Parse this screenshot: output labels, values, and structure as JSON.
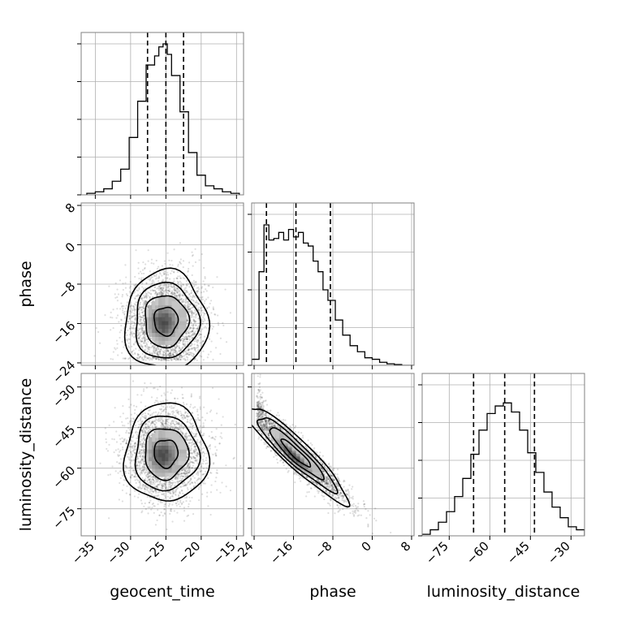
{
  "chart_data": {
    "type": "corner",
    "parameters": [
      "geocent_time",
      "phase",
      "luminosity_distance"
    ],
    "axis_labels": {
      "bottom": [
        "geocent_time",
        "phase",
        "luminosity_distance"
      ],
      "left": [
        "phase",
        "luminosity_distance"
      ]
    },
    "ranges": {
      "geocent_time": [
        -37,
        -14
      ],
      "phase": [
        -24.5,
        8.5
      ],
      "luminosity_distance": [
        -85,
        -25
      ]
    },
    "ticks": {
      "geocent_time": [
        -35,
        -30,
        -25,
        -20,
        -15
      ],
      "phase": [
        -24,
        -16,
        -8,
        0,
        8
      ],
      "luminosity_distance": [
        -75,
        -60,
        -45,
        -30
      ]
    },
    "quantiles": {
      "geocent_time": [
        -27.6,
        -25.0,
        -22.5
      ],
      "phase": [
        -21.5,
        -15.5,
        -8.5
      ],
      "luminosity_distance": [
        -66.0,
        -54.5,
        -43.5
      ]
    },
    "histograms": {
      "geocent_time": {
        "edges": [
          -36.2,
          -35.0,
          -33.8,
          -32.6,
          -31.4,
          -30.2,
          -29.0,
          -27.8,
          -26.6,
          -26.0,
          -25.4,
          -24.8,
          -24.2,
          -23.0,
          -21.8,
          -20.6,
          -19.4,
          -18.2,
          -17.0,
          -15.8,
          -14.6
        ],
        "counts": [
          0.01,
          0.02,
          0.04,
          0.09,
          0.17,
          0.38,
          0.62,
          0.86,
          0.92,
          0.98,
          1.0,
          0.93,
          0.79,
          0.55,
          0.28,
          0.13,
          0.06,
          0.04,
          0.02,
          0.01
        ]
      },
      "phase": {
        "edges": [
          -24.5,
          -23.0,
          -22.0,
          -21.0,
          -20.0,
          -19.0,
          -18.0,
          -17.0,
          -16.0,
          -15.0,
          -14.0,
          -13.0,
          -12.0,
          -11.0,
          -10.0,
          -9.0,
          -7.5,
          -6.0,
          -4.5,
          -3.0,
          -1.5,
          0.0,
          1.5,
          3.0,
          4.5,
          6.0,
          8.5
        ],
        "counts": [
          0.04,
          0.62,
          0.93,
          0.83,
          0.84,
          0.88,
          0.83,
          0.9,
          0.85,
          0.88,
          0.81,
          0.79,
          0.69,
          0.62,
          0.5,
          0.43,
          0.3,
          0.2,
          0.13,
          0.09,
          0.05,
          0.04,
          0.02,
          0.01,
          0.005,
          0.0
        ]
      },
      "luminosity_distance": {
        "edges": [
          -85,
          -82,
          -79,
          -76,
          -73,
          -70,
          -67,
          -64,
          -61,
          -58,
          -55,
          -52,
          -49,
          -46,
          -43,
          -40,
          -37,
          -34,
          -31,
          -28,
          -25
        ],
        "counts": [
          0.01,
          0.04,
          0.09,
          0.16,
          0.26,
          0.38,
          0.54,
          0.7,
          0.81,
          0.86,
          0.88,
          0.82,
          0.7,
          0.55,
          0.42,
          0.29,
          0.19,
          0.12,
          0.06,
          0.04
        ]
      }
    },
    "scatter_pairs": [
      {
        "x": "geocent_time",
        "y": "phase"
      },
      {
        "x": "geocent_time",
        "y": "luminosity_distance"
      },
      {
        "x": "phase",
        "y": "luminosity_distance"
      }
    ]
  }
}
